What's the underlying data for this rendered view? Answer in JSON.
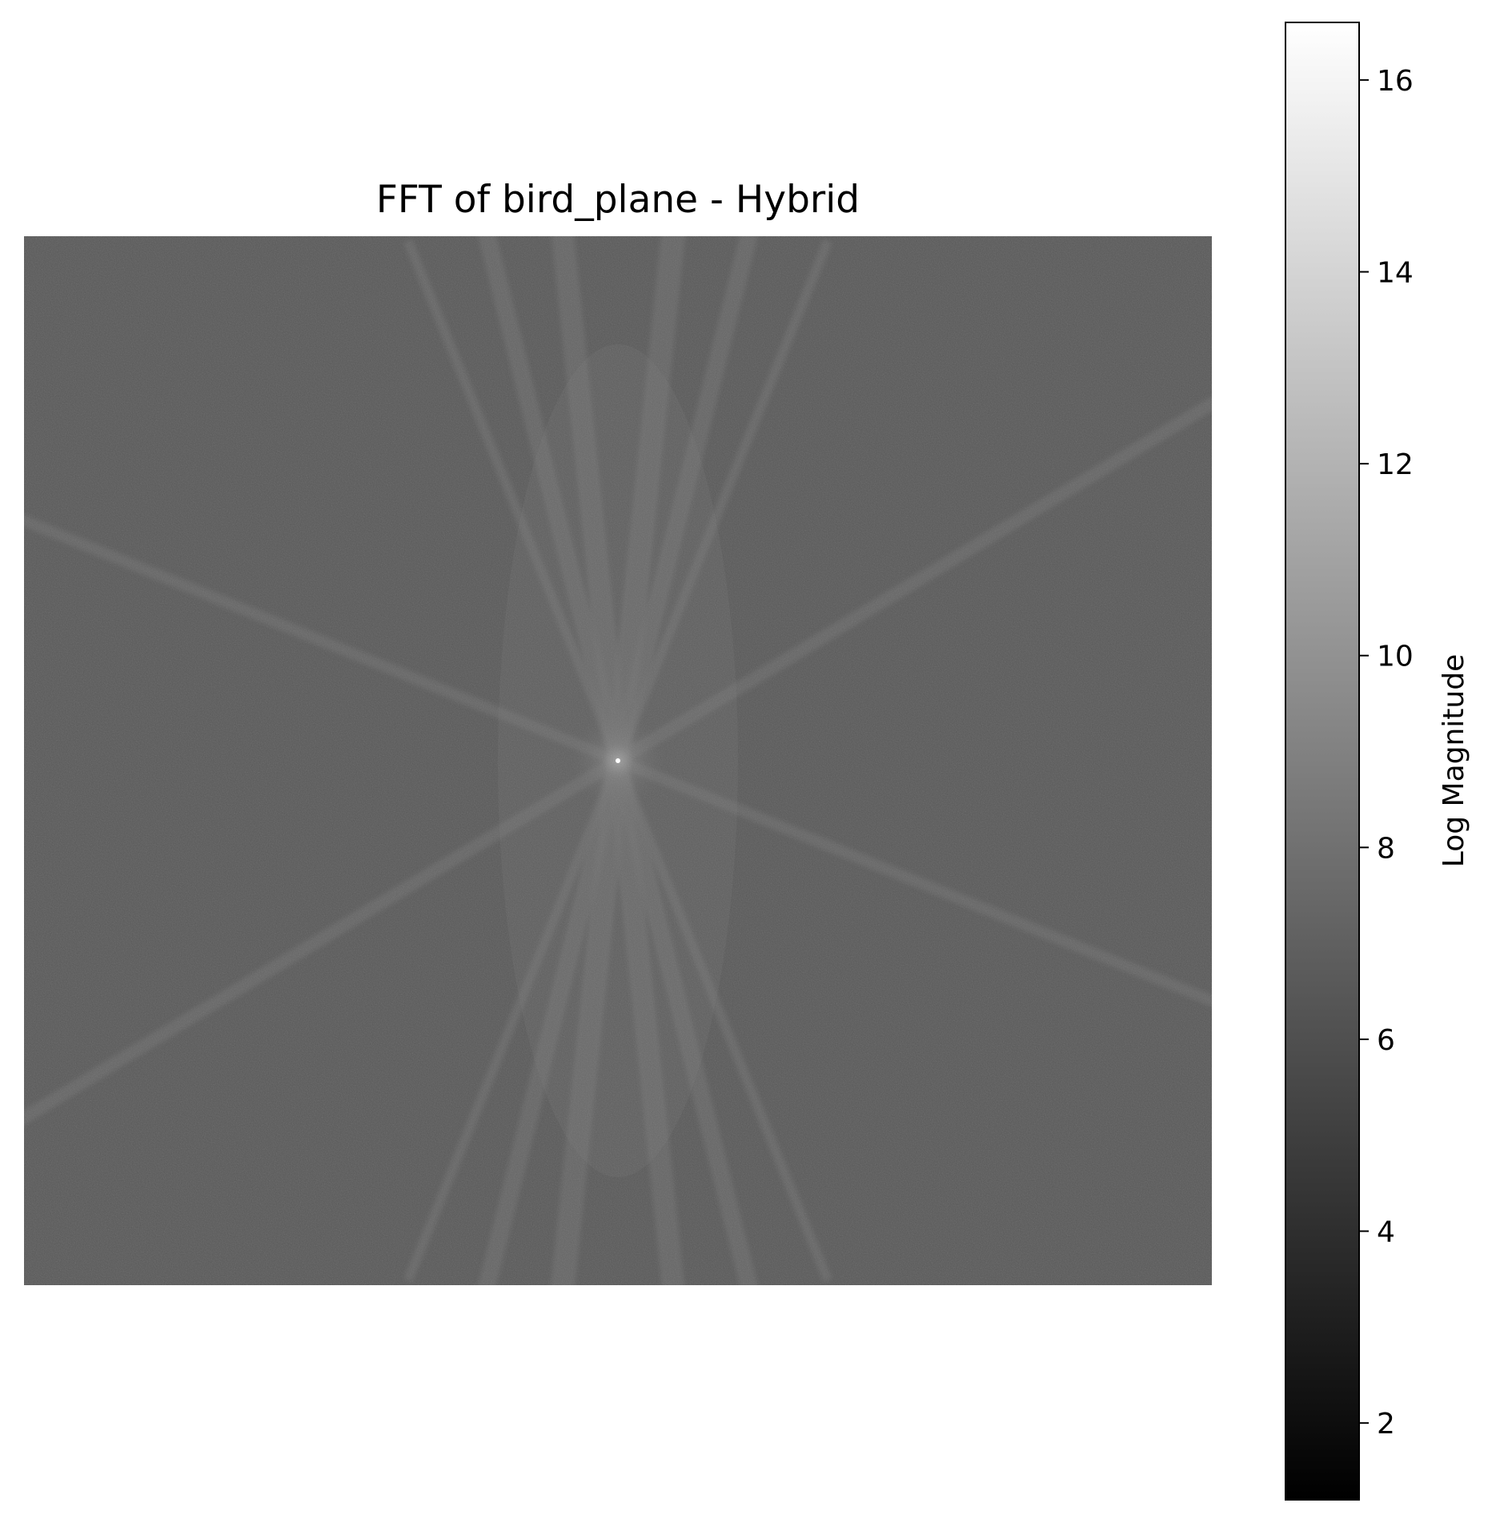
{
  "chart_data": {
    "type": "heatmap",
    "title": "FFT of bird_plane - Hybrid",
    "colormap": "gray",
    "axes_visible": false,
    "image": {
      "center_peak": 16.6,
      "background_level": 6.5,
      "streak_level": 7.8
    },
    "colorbar": {
      "label": "Log Magnitude",
      "vmin": 1.2,
      "vmax": 16.6,
      "ticks": [
        2,
        4,
        6,
        8,
        10,
        12,
        14,
        16
      ]
    }
  }
}
